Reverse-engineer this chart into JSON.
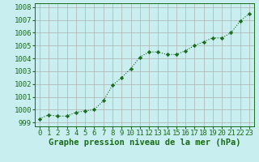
{
  "x": [
    0,
    1,
    2,
    3,
    4,
    5,
    6,
    7,
    8,
    9,
    10,
    11,
    12,
    13,
    14,
    15,
    16,
    17,
    18,
    19,
    20,
    21,
    22,
    23
  ],
  "y": [
    999.3,
    999.6,
    999.5,
    999.5,
    999.8,
    999.9,
    1000.0,
    1000.7,
    1001.9,
    1002.5,
    1003.2,
    1004.1,
    1004.5,
    1004.5,
    1004.3,
    1004.3,
    1004.6,
    1005.0,
    1005.3,
    1005.6,
    1005.6,
    1006.0,
    1006.9,
    1007.5
  ],
  "line_color": "#1a6b1a",
  "marker": "D",
  "marker_size": 2.2,
  "bg_color": "#c8eef0",
  "grid_color": "#b0b0b0",
  "xlabel": "Graphe pression niveau de la mer (hPa)",
  "xlabel_fontsize": 7.5,
  "ylabel_ticks": [
    999,
    1000,
    1001,
    1002,
    1003,
    1004,
    1005,
    1006,
    1007,
    1008
  ],
  "xlim": [
    -0.5,
    23.5
  ],
  "ylim": [
    998.7,
    1008.3
  ],
  "tick_fontsize": 6.5,
  "linewidth": 0.8
}
